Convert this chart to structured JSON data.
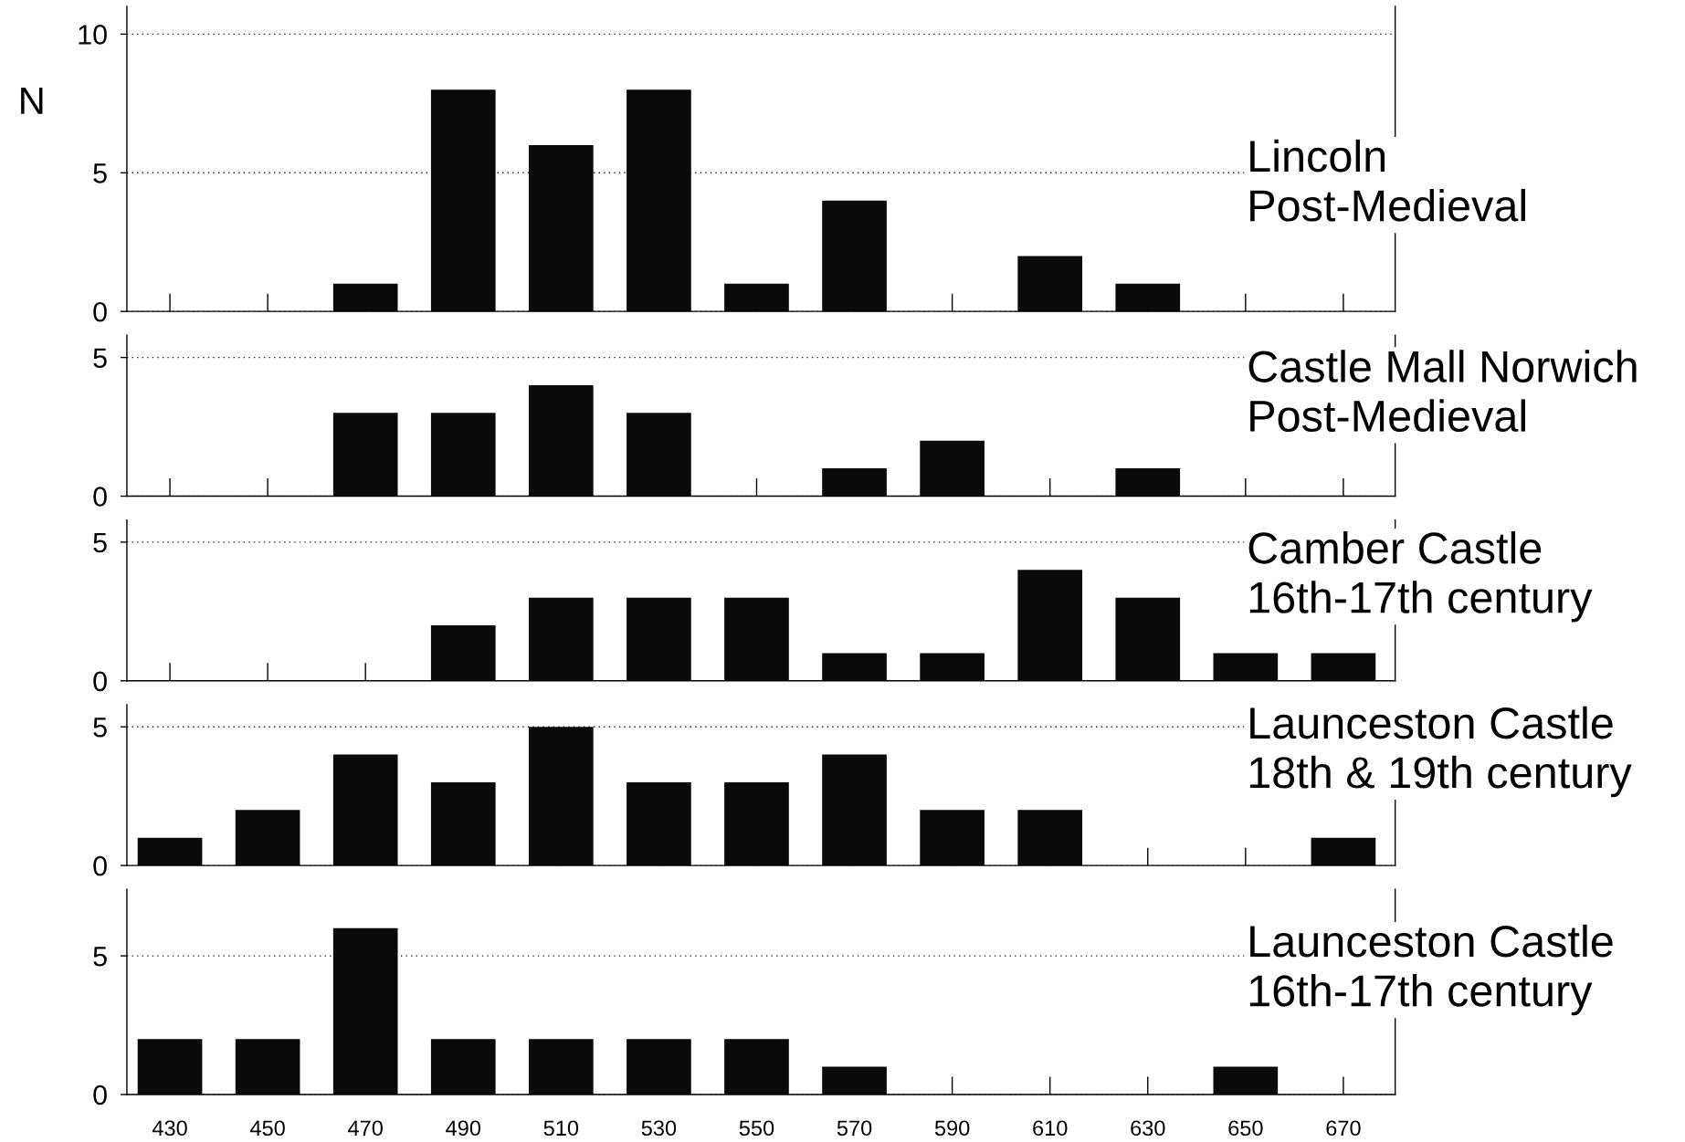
{
  "chart_data": [
    {
      "type": "bar",
      "title": "Lincoln\nPost-Medieval",
      "ylabel": "N",
      "categories": [
        "430",
        "450",
        "470",
        "490",
        "510",
        "530",
        "550",
        "570",
        "590",
        "610",
        "630",
        "650",
        "670"
      ],
      "values": [
        0,
        0,
        1,
        8,
        6,
        8,
        1,
        4,
        0,
        2,
        1,
        0,
        0
      ],
      "color": "#0a0a0a",
      "ylim": [
        0,
        11
      ],
      "yticks": [
        0,
        5,
        10
      ],
      "grid": "y",
      "tick_labels": "y"
    },
    {
      "type": "bar",
      "title": "Castle Mall Norwich\nPost-Medieval",
      "categories": [
        "430",
        "450",
        "470",
        "490",
        "510",
        "530",
        "550",
        "570",
        "590",
        "610",
        "630",
        "650",
        "670"
      ],
      "values": [
        0,
        0,
        3,
        3,
        4,
        3,
        0,
        1,
        2,
        0,
        1,
        0,
        0
      ],
      "color": "#0a0a0a",
      "ylim": [
        0,
        5.8
      ],
      "yticks": [
        0,
        5
      ],
      "grid": "y",
      "tick_labels": "y"
    },
    {
      "type": "bar",
      "title": "Camber Castle\n16th-17th century",
      "categories": [
        "430",
        "450",
        "470",
        "490",
        "510",
        "530",
        "550",
        "570",
        "590",
        "610",
        "630",
        "650",
        "670"
      ],
      "values": [
        0,
        0,
        0,
        2,
        3,
        3,
        3,
        1,
        1,
        4,
        3,
        1,
        1
      ],
      "color": "#0a0a0a",
      "ylim": [
        0,
        5.8
      ],
      "yticks": [
        0,
        5
      ],
      "grid": "y",
      "tick_labels": "y"
    },
    {
      "type": "bar",
      "title": "Launceston Castle\n18th & 19th century",
      "categories": [
        "430",
        "450",
        "470",
        "490",
        "510",
        "530",
        "550",
        "570",
        "590",
        "610",
        "630",
        "650",
        "670"
      ],
      "values": [
        1,
        2,
        4,
        3,
        5,
        3,
        3,
        4,
        2,
        2,
        0,
        0,
        1
      ],
      "color": "#0a0a0a",
      "ylim": [
        0,
        5.8
      ],
      "yticks": [
        0,
        5
      ],
      "grid": "y",
      "tick_labels": "y"
    },
    {
      "type": "bar",
      "title": "Launceston Castle\n16th-17th century",
      "categories": [
        "430",
        "450",
        "470",
        "490",
        "510",
        "530",
        "550",
        "570",
        "590",
        "610",
        "630",
        "650",
        "670"
      ],
      "values": [
        2,
        2,
        6,
        2,
        2,
        2,
        2,
        1,
        0,
        0,
        0,
        1,
        0
      ],
      "color": "#0a0a0a",
      "ylim": [
        0,
        7.4
      ],
      "yticks": [
        0,
        5
      ],
      "grid": "y"
    }
  ]
}
